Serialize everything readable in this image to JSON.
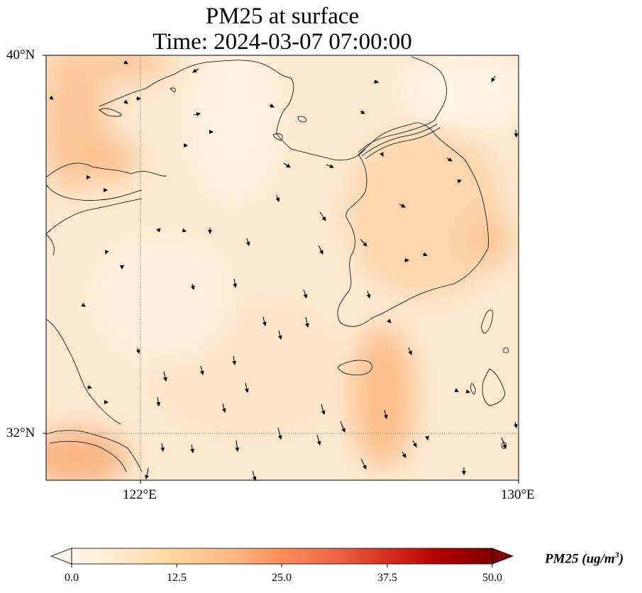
{
  "title": {
    "line1": "PM25 at surface",
    "line2": "Time: 2024-03-07 07:00:00"
  },
  "axes": {
    "lat_labels": [
      "40°N",
      "32°N"
    ],
    "lon_labels": [
      "122°E",
      "130°E"
    ],
    "lat_range": [
      31,
      40
    ],
    "lon_range": [
      120,
      130
    ]
  },
  "colorbar": {
    "ticks": [
      "0.0",
      "12.5",
      "25.0",
      "37.5",
      "50.0"
    ],
    "range": [
      0,
      50
    ],
    "extend": "both",
    "label_main": "PM25 (ug/m",
    "label_sup": "3",
    "label_end": ")",
    "colormap": [
      "#fff7ec",
      "#fee8c8",
      "#fdd49e",
      "#fdbb84",
      "#fc8d59",
      "#ef6548",
      "#d7301f",
      "#b30000",
      "#7f0000"
    ]
  },
  "map": {
    "land_outline_color": "#000000",
    "gridline_color": "#808080",
    "base_field_color": "#fde9cf"
  }
}
